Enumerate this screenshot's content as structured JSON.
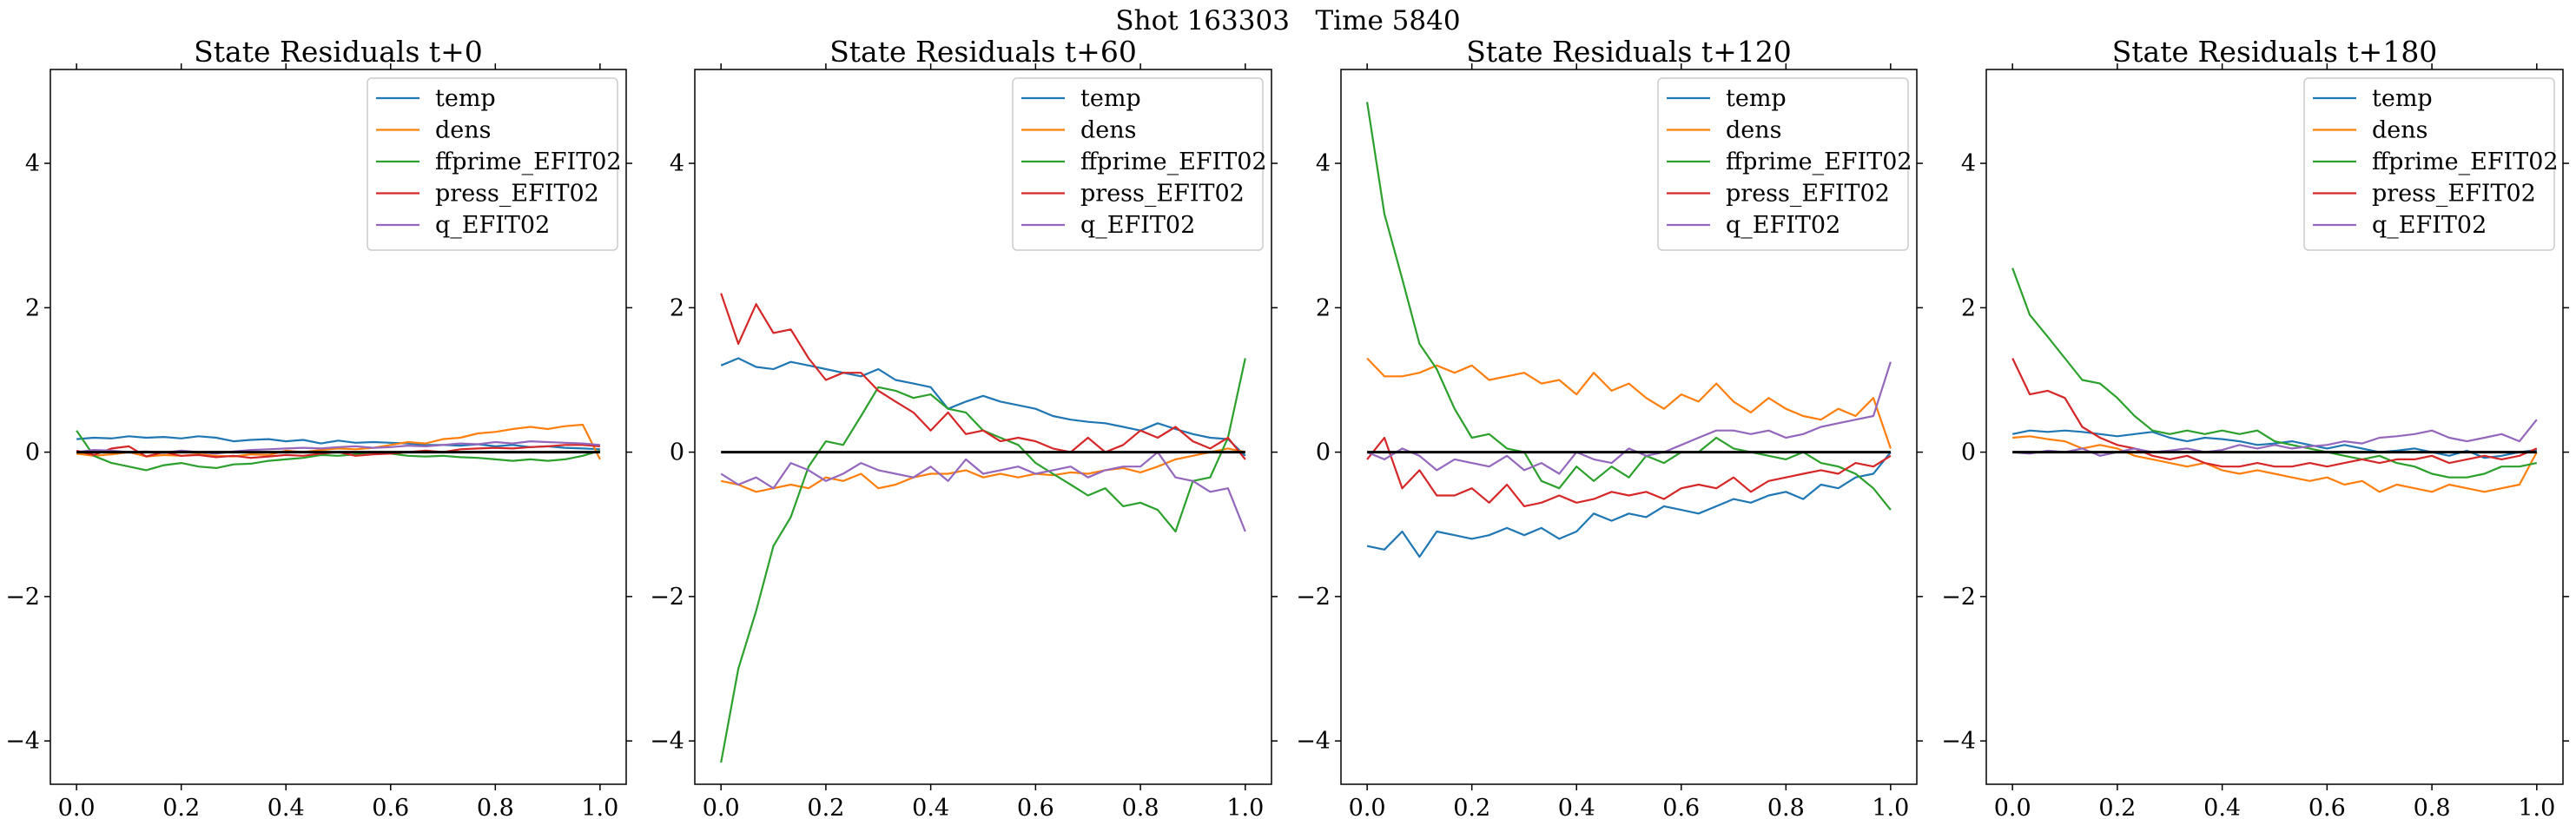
{
  "figure": {
    "suptitle": "Shot 163303   Time 5840"
  },
  "chart_data": [
    {
      "type": "line",
      "title": "State Residuals t+0",
      "xlim": [
        -0.05,
        1.05
      ],
      "ylim": [
        -4.6,
        5.3
      ],
      "xticks": [
        0.0,
        0.2,
        0.4,
        0.6,
        0.8,
        1.0
      ],
      "xtick_labels": [
        "0.0",
        "0.2",
        "0.4",
        "0.6",
        "0.8",
        "1.0"
      ],
      "yticks": [
        -4,
        -2,
        0,
        2,
        4
      ],
      "ytick_labels": [
        "−4",
        "−2",
        "0",
        "2",
        "4"
      ],
      "legend_position": "top-right",
      "grid": false,
      "reference_line": {
        "y": 0,
        "color": "#000000"
      },
      "x": [
        0,
        0.033,
        0.067,
        0.1,
        0.133,
        0.167,
        0.2,
        0.233,
        0.267,
        0.3,
        0.333,
        0.367,
        0.4,
        0.433,
        0.467,
        0.5,
        0.533,
        0.567,
        0.6,
        0.633,
        0.667,
        0.7,
        0.733,
        0.767,
        0.8,
        0.833,
        0.867,
        0.9,
        0.933,
        0.967,
        1.0
      ],
      "series": [
        {
          "name": "temp",
          "color": "#1f77b4",
          "values": [
            0.18,
            0.2,
            0.19,
            0.22,
            0.2,
            0.21,
            0.19,
            0.22,
            0.2,
            0.15,
            0.17,
            0.18,
            0.15,
            0.17,
            0.12,
            0.16,
            0.13,
            0.14,
            0.13,
            0.12,
            0.1,
            0.1,
            0.09,
            0.11,
            0.08,
            0.1,
            0.07,
            0.08,
            0.06,
            0.05,
            0.04
          ]
        },
        {
          "name": "dens",
          "color": "#ff7f0e",
          "values": [
            -0.02,
            -0.05,
            -0.03,
            0.0,
            -0.06,
            -0.04,
            -0.05,
            -0.03,
            -0.05,
            -0.06,
            -0.03,
            -0.04,
            0.02,
            0.0,
            0.03,
            0.05,
            0.04,
            0.06,
            0.1,
            0.14,
            0.12,
            0.18,
            0.2,
            0.26,
            0.28,
            0.32,
            0.35,
            0.32,
            0.36,
            0.38,
            -0.1
          ]
        },
        {
          "name": "ffprime_EFIT02",
          "color": "#2ca02c",
          "values": [
            0.3,
            -0.05,
            -0.15,
            -0.2,
            -0.25,
            -0.18,
            -0.15,
            -0.2,
            -0.22,
            -0.17,
            -0.16,
            -0.12,
            -0.1,
            -0.08,
            -0.04,
            -0.05,
            -0.03,
            0.0,
            -0.02,
            -0.05,
            -0.06,
            -0.05,
            -0.07,
            -0.08,
            -0.1,
            -0.12,
            -0.1,
            -0.12,
            -0.1,
            -0.05,
            0.02
          ]
        },
        {
          "name": "press_EFIT02",
          "color": "#d62728",
          "values": [
            0.02,
            -0.04,
            0.05,
            0.08,
            -0.06,
            0.0,
            -0.05,
            -0.04,
            -0.07,
            -0.05,
            -0.08,
            -0.06,
            -0.04,
            -0.05,
            -0.02,
            0.0,
            -0.05,
            -0.03,
            -0.02,
            0.0,
            0.02,
            0.0,
            0.04,
            0.05,
            0.06,
            0.05,
            0.07,
            0.08,
            0.1,
            0.1,
            0.08
          ]
        },
        {
          "name": "q_EFIT02",
          "color": "#9467bd",
          "values": [
            0.0,
            0.03,
            0.02,
            0.0,
            0.01,
            -0.01,
            0.02,
            0.0,
            -0.02,
            0.01,
            0.03,
            0.04,
            0.05,
            0.06,
            0.05,
            0.07,
            0.08,
            0.06,
            0.07,
            0.09,
            0.08,
            0.1,
            0.12,
            0.11,
            0.14,
            0.12,
            0.15,
            0.14,
            0.13,
            0.12,
            0.1
          ]
        }
      ]
    },
    {
      "type": "line",
      "title": "State Residuals t+60",
      "xlim": [
        -0.05,
        1.05
      ],
      "ylim": [
        -4.6,
        5.3
      ],
      "xticks": [
        0.0,
        0.2,
        0.4,
        0.6,
        0.8,
        1.0
      ],
      "xtick_labels": [
        "0.0",
        "0.2",
        "0.4",
        "0.6",
        "0.8",
        "1.0"
      ],
      "yticks": [
        -4,
        -2,
        0,
        2,
        4
      ],
      "ytick_labels": [
        "−4",
        "−2",
        "0",
        "2",
        "4"
      ],
      "legend_position": "top-right",
      "grid": false,
      "reference_line": {
        "y": 0,
        "color": "#000000"
      },
      "x": [
        0,
        0.033,
        0.067,
        0.1,
        0.133,
        0.167,
        0.2,
        0.233,
        0.267,
        0.3,
        0.333,
        0.367,
        0.4,
        0.433,
        0.467,
        0.5,
        0.533,
        0.567,
        0.6,
        0.633,
        0.667,
        0.7,
        0.733,
        0.767,
        0.8,
        0.833,
        0.867,
        0.9,
        0.933,
        0.967,
        1.0
      ],
      "series": [
        {
          "name": "temp",
          "color": "#1f77b4",
          "values": [
            1.2,
            1.3,
            1.18,
            1.15,
            1.25,
            1.2,
            1.15,
            1.1,
            1.05,
            1.15,
            1.0,
            0.95,
            0.9,
            0.6,
            0.7,
            0.78,
            0.7,
            0.65,
            0.6,
            0.5,
            0.45,
            0.42,
            0.4,
            0.35,
            0.3,
            0.4,
            0.32,
            0.25,
            0.2,
            0.18,
            -0.05
          ]
        },
        {
          "name": "dens",
          "color": "#ff7f0e",
          "values": [
            -0.4,
            -0.45,
            -0.55,
            -0.5,
            -0.45,
            -0.5,
            -0.35,
            -0.4,
            -0.3,
            -0.5,
            -0.45,
            -0.35,
            -0.3,
            -0.3,
            -0.25,
            -0.35,
            -0.3,
            -0.35,
            -0.3,
            -0.32,
            -0.28,
            -0.3,
            -0.25,
            -0.22,
            -0.28,
            -0.2,
            -0.1,
            -0.05,
            0.0,
            0.05,
            0.0
          ]
        },
        {
          "name": "ffprime_EFIT02",
          "color": "#2ca02c",
          "values": [
            -4.3,
            -3.0,
            -2.2,
            -1.3,
            -0.9,
            -0.2,
            0.15,
            0.1,
            0.5,
            0.9,
            0.85,
            0.75,
            0.8,
            0.6,
            0.55,
            0.3,
            0.2,
            0.1,
            -0.15,
            -0.3,
            -0.45,
            -0.6,
            -0.5,
            -0.75,
            -0.7,
            -0.8,
            -1.1,
            -0.4,
            -0.35,
            0.2,
            1.3
          ]
        },
        {
          "name": "press_EFIT02",
          "color": "#d62728",
          "values": [
            2.2,
            1.5,
            2.05,
            1.65,
            1.7,
            1.3,
            1.0,
            1.1,
            1.1,
            0.85,
            0.7,
            0.55,
            0.3,
            0.55,
            0.25,
            0.3,
            0.15,
            0.2,
            0.15,
            0.05,
            0.0,
            0.2,
            0.0,
            0.1,
            0.3,
            0.2,
            0.35,
            0.15,
            0.05,
            0.2,
            -0.1
          ]
        },
        {
          "name": "q_EFIT02",
          "color": "#9467bd",
          "values": [
            -0.3,
            -0.45,
            -0.35,
            -0.5,
            -0.15,
            -0.25,
            -0.4,
            -0.3,
            -0.15,
            -0.25,
            -0.3,
            -0.35,
            -0.2,
            -0.4,
            -0.1,
            -0.3,
            -0.25,
            -0.2,
            -0.3,
            -0.25,
            -0.2,
            -0.35,
            -0.25,
            -0.2,
            -0.2,
            0.0,
            -0.35,
            -0.4,
            -0.55,
            -0.5,
            -1.1
          ]
        }
      ]
    },
    {
      "type": "line",
      "title": "State Residuals t+120",
      "xlim": [
        -0.05,
        1.05
      ],
      "ylim": [
        -4.6,
        5.3
      ],
      "xticks": [
        0.0,
        0.2,
        0.4,
        0.6,
        0.8,
        1.0
      ],
      "xtick_labels": [
        "0.0",
        "0.2",
        "0.4",
        "0.6",
        "0.8",
        "1.0"
      ],
      "yticks": [
        -4,
        -2,
        0,
        2,
        4
      ],
      "ytick_labels": [
        "−4",
        "−2",
        "0",
        "2",
        "4"
      ],
      "legend_position": "top-right",
      "grid": false,
      "reference_line": {
        "y": 0,
        "color": "#000000"
      },
      "x": [
        0,
        0.033,
        0.067,
        0.1,
        0.133,
        0.167,
        0.2,
        0.233,
        0.267,
        0.3,
        0.333,
        0.367,
        0.4,
        0.433,
        0.467,
        0.5,
        0.533,
        0.567,
        0.6,
        0.633,
        0.667,
        0.7,
        0.733,
        0.767,
        0.8,
        0.833,
        0.867,
        0.9,
        0.933,
        0.967,
        1.0
      ],
      "series": [
        {
          "name": "temp",
          "color": "#1f77b4",
          "values": [
            -1.3,
            -1.35,
            -1.1,
            -1.45,
            -1.1,
            -1.15,
            -1.2,
            -1.15,
            -1.05,
            -1.15,
            -1.05,
            -1.2,
            -1.1,
            -0.85,
            -0.95,
            -0.85,
            -0.9,
            -0.75,
            -0.8,
            -0.85,
            -0.75,
            -0.65,
            -0.7,
            -0.6,
            -0.55,
            -0.65,
            -0.45,
            -0.5,
            -0.35,
            -0.3,
            0.0
          ]
        },
        {
          "name": "dens",
          "color": "#ff7f0e",
          "values": [
            1.3,
            1.05,
            1.05,
            1.1,
            1.2,
            1.1,
            1.2,
            1.0,
            1.05,
            1.1,
            0.95,
            1.0,
            0.8,
            1.1,
            0.85,
            0.95,
            0.75,
            0.6,
            0.8,
            0.7,
            0.95,
            0.7,
            0.55,
            0.75,
            0.6,
            0.5,
            0.45,
            0.6,
            0.5,
            0.75,
            0.05
          ]
        },
        {
          "name": "ffprime_EFIT02",
          "color": "#2ca02c",
          "values": [
            4.85,
            3.3,
            2.4,
            1.5,
            1.15,
            0.6,
            0.2,
            0.25,
            0.05,
            0.0,
            -0.4,
            -0.5,
            -0.2,
            -0.4,
            -0.2,
            -0.35,
            -0.05,
            -0.15,
            0.0,
            0.0,
            0.2,
            0.05,
            0.0,
            -0.05,
            -0.1,
            0.0,
            -0.15,
            -0.2,
            -0.3,
            -0.5,
            -0.8
          ]
        },
        {
          "name": "press_EFIT02",
          "color": "#d62728",
          "values": [
            -0.1,
            0.2,
            -0.5,
            -0.25,
            -0.6,
            -0.6,
            -0.5,
            -0.7,
            -0.45,
            -0.75,
            -0.7,
            -0.6,
            -0.7,
            -0.65,
            -0.55,
            -0.6,
            -0.55,
            -0.65,
            -0.5,
            -0.45,
            -0.5,
            -0.35,
            -0.55,
            -0.4,
            -0.35,
            -0.3,
            -0.25,
            -0.3,
            -0.15,
            -0.2,
            -0.05
          ]
        },
        {
          "name": "q_EFIT02",
          "color": "#9467bd",
          "values": [
            0.0,
            -0.1,
            0.05,
            -0.05,
            -0.25,
            -0.1,
            -0.15,
            -0.2,
            -0.05,
            -0.25,
            -0.15,
            -0.3,
            0.0,
            -0.1,
            -0.15,
            0.05,
            -0.05,
            0.0,
            0.1,
            0.2,
            0.3,
            0.3,
            0.25,
            0.3,
            0.2,
            0.25,
            0.35,
            0.4,
            0.45,
            0.5,
            1.25
          ]
        }
      ]
    },
    {
      "type": "line",
      "title": "State Residuals t+180",
      "xlim": [
        -0.05,
        1.05
      ],
      "ylim": [
        -4.6,
        5.3
      ],
      "xticks": [
        0.0,
        0.2,
        0.4,
        0.6,
        0.8,
        1.0
      ],
      "xtick_labels": [
        "0.0",
        "0.2",
        "0.4",
        "0.6",
        "0.8",
        "1.0"
      ],
      "yticks": [
        -4,
        -2,
        0,
        2,
        4
      ],
      "ytick_labels": [
        "−4",
        "−2",
        "0",
        "2",
        "4"
      ],
      "legend_position": "top-right",
      "grid": false,
      "reference_line": {
        "y": 0,
        "color": "#000000"
      },
      "x": [
        0,
        0.033,
        0.067,
        0.1,
        0.133,
        0.167,
        0.2,
        0.233,
        0.267,
        0.3,
        0.333,
        0.367,
        0.4,
        0.433,
        0.467,
        0.5,
        0.533,
        0.567,
        0.6,
        0.633,
        0.667,
        0.7,
        0.733,
        0.767,
        0.8,
        0.833,
        0.867,
        0.9,
        0.933,
        0.967,
        1.0
      ],
      "series": [
        {
          "name": "temp",
          "color": "#1f77b4",
          "values": [
            0.25,
            0.3,
            0.28,
            0.3,
            0.28,
            0.25,
            0.22,
            0.25,
            0.28,
            0.2,
            0.15,
            0.2,
            0.18,
            0.15,
            0.1,
            0.12,
            0.15,
            0.1,
            0.05,
            0.1,
            0.05,
            0.0,
            0.02,
            0.05,
            0.0,
            -0.05,
            0.02,
            -0.08,
            -0.05,
            0.0,
            0.03
          ]
        },
        {
          "name": "dens",
          "color": "#ff7f0e",
          "values": [
            0.2,
            0.22,
            0.18,
            0.15,
            0.05,
            0.1,
            0.05,
            -0.05,
            -0.1,
            -0.15,
            -0.2,
            -0.15,
            -0.25,
            -0.3,
            -0.25,
            -0.3,
            -0.35,
            -0.4,
            -0.35,
            -0.45,
            -0.4,
            -0.55,
            -0.45,
            -0.5,
            -0.55,
            -0.45,
            -0.5,
            -0.55,
            -0.5,
            -0.45,
            0.0
          ]
        },
        {
          "name": "ffprime_EFIT02",
          "color": "#2ca02c",
          "values": [
            2.55,
            1.9,
            1.6,
            1.3,
            1.0,
            0.95,
            0.75,
            0.5,
            0.3,
            0.25,
            0.3,
            0.25,
            0.3,
            0.25,
            0.3,
            0.15,
            0.1,
            0.05,
            0.0,
            -0.05,
            -0.1,
            -0.05,
            -0.15,
            -0.2,
            -0.3,
            -0.35,
            -0.35,
            -0.3,
            -0.2,
            -0.2,
            -0.15
          ]
        },
        {
          "name": "press_EFIT02",
          "color": "#d62728",
          "values": [
            1.3,
            0.8,
            0.85,
            0.75,
            0.35,
            0.2,
            0.1,
            0.05,
            -0.05,
            -0.1,
            -0.05,
            -0.15,
            -0.2,
            -0.2,
            -0.15,
            -0.2,
            -0.2,
            -0.15,
            -0.2,
            -0.15,
            -0.1,
            -0.15,
            -0.1,
            -0.1,
            -0.05,
            -0.15,
            -0.1,
            -0.05,
            -0.1,
            -0.05,
            0.05
          ]
        },
        {
          "name": "q_EFIT02",
          "color": "#9467bd",
          "values": [
            0.0,
            -0.02,
            0.02,
            0.0,
            0.05,
            -0.05,
            0.0,
            0.05,
            0.0,
            0.02,
            0.05,
            0.0,
            0.03,
            0.1,
            0.05,
            0.1,
            0.05,
            0.08,
            0.1,
            0.15,
            0.12,
            0.2,
            0.22,
            0.25,
            0.3,
            0.2,
            0.15,
            0.2,
            0.25,
            0.15,
            0.45
          ]
        }
      ]
    }
  ]
}
